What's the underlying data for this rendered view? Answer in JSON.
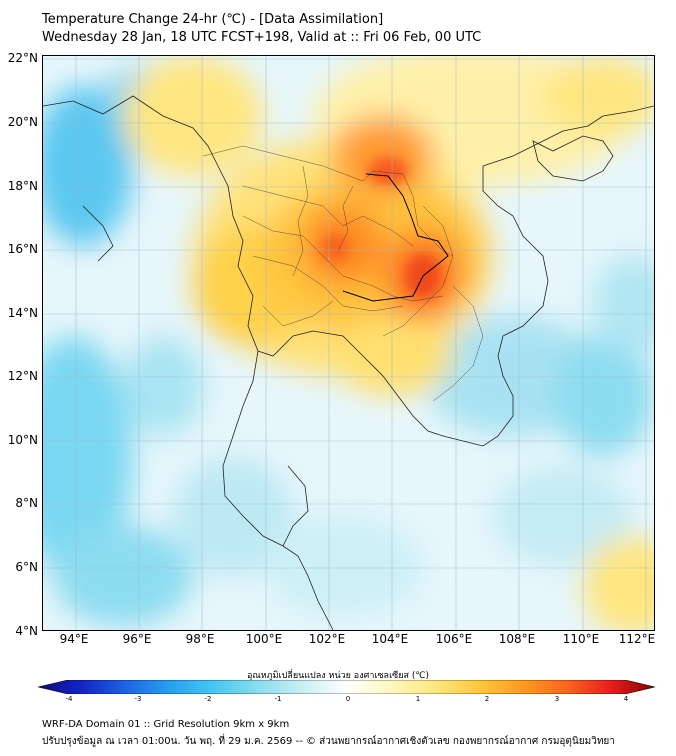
{
  "title_line1": "Temperature Change 24-hr (℃) - [Data Assimilation]",
  "title_line2": "Wednesday 28 Jan, 18 UTC FCST+198, Valid at :: Fri 06 Feb, 00 UTC",
  "lat_labels": [
    "22°N",
    "20°N",
    "18°N",
    "16°N",
    "14°N",
    "12°N",
    "10°N",
    "8°N",
    "6°N",
    "4°N"
  ],
  "lon_labels": [
    "94°E",
    "96°E",
    "98°E",
    "100°E",
    "102°E",
    "104°E",
    "106°E",
    "108°E",
    "110°E",
    "112°E"
  ],
  "colorbar": {
    "title": "อุณหภูมิเปลี่ยนแปลง หน่วย องศาเซลเซียส (℃)",
    "ticks": [
      "-4",
      "-3",
      "-2",
      "-1",
      "0",
      "1",
      "2",
      "3",
      "4"
    ],
    "colors": [
      "#0a0a7a",
      "#1424c8",
      "#1e64e6",
      "#28a0f0",
      "#46c8f0",
      "#8cdcf0",
      "#c8eef4",
      "#ffffff",
      "#fff8c0",
      "#ffe680",
      "#ffc83c",
      "#ff9a1e",
      "#ff641e",
      "#e61e1e",
      "#8c0000"
    ]
  },
  "footer_line1": "WRF-DA Domain 01 :: Grid Resolution 9km x 9km",
  "footer_line2": "ปรับปรุงข้อมูล ณ เวลา 01:00น. วัน พฤ. ที่ 29 ม.ค. 2569 -- © ส่วนพยากรณ์อากาศเชิงตัวเลข กองพยากรณ์อากาศ กรมอุตุนิยมวิทยา"
}
